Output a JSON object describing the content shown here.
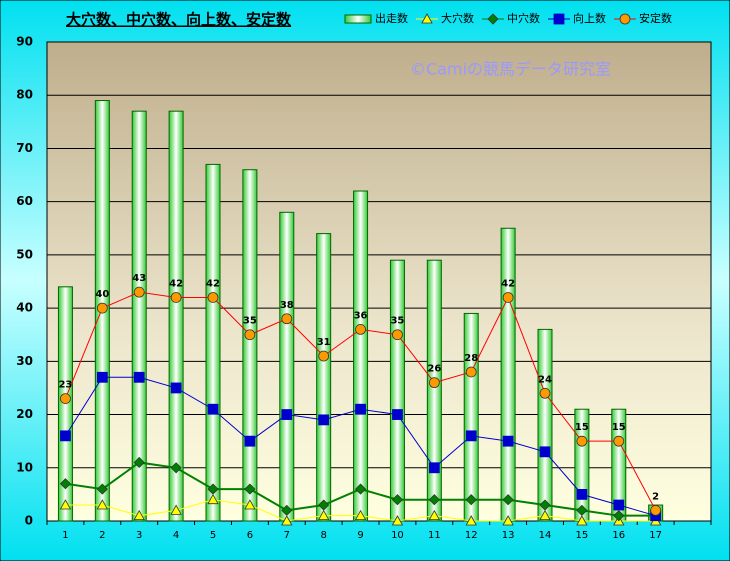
{
  "chart_data": {
    "type": "bar-line",
    "title": "大穴数、中穴数、向上数、安定数",
    "watermark": "©Camiの競馬データ研究室",
    "categories": [
      "1",
      "2",
      "3",
      "4",
      "5",
      "6",
      "7",
      "8",
      "9",
      "10",
      "11",
      "12",
      "13",
      "14",
      "15",
      "16",
      "17"
    ],
    "ylim": [
      0,
      90
    ],
    "yticks": [
      0,
      10,
      20,
      30,
      40,
      50,
      60,
      70,
      80,
      90
    ],
    "grid": true,
    "series": [
      {
        "name": "出走数",
        "type": "bar",
        "color": "#33cc33",
        "values": [
          44,
          79,
          77,
          77,
          67,
          66,
          58,
          54,
          62,
          49,
          49,
          39,
          55,
          36,
          21,
          21,
          3
        ]
      },
      {
        "name": "大穴数",
        "type": "line",
        "marker": "triangle",
        "color": "#ffff00",
        "values": [
          3,
          3,
          1,
          2,
          4,
          3,
          0,
          1,
          1,
          0,
          1,
          0,
          0,
          1,
          0,
          0,
          0
        ]
      },
      {
        "name": "中穴数",
        "type": "line",
        "marker": "diamond",
        "color": "#008000",
        "values": [
          7,
          6,
          11,
          10,
          6,
          6,
          2,
          3,
          6,
          4,
          4,
          4,
          4,
          3,
          2,
          1,
          1
        ]
      },
      {
        "name": "向上数",
        "type": "line",
        "marker": "square",
        "color": "#0000cc",
        "values": [
          16,
          27,
          27,
          25,
          21,
          15,
          20,
          19,
          21,
          20,
          10,
          16,
          15,
          13,
          5,
          3,
          1
        ]
      },
      {
        "name": "安定数",
        "type": "line",
        "marker": "circle",
        "color": "#ff9900",
        "line_color": "#ff0000",
        "show_labels": true,
        "values": [
          23,
          40,
          43,
          42,
          42,
          35,
          38,
          31,
          36,
          35,
          26,
          28,
          42,
          24,
          15,
          15,
          2
        ]
      }
    ]
  }
}
